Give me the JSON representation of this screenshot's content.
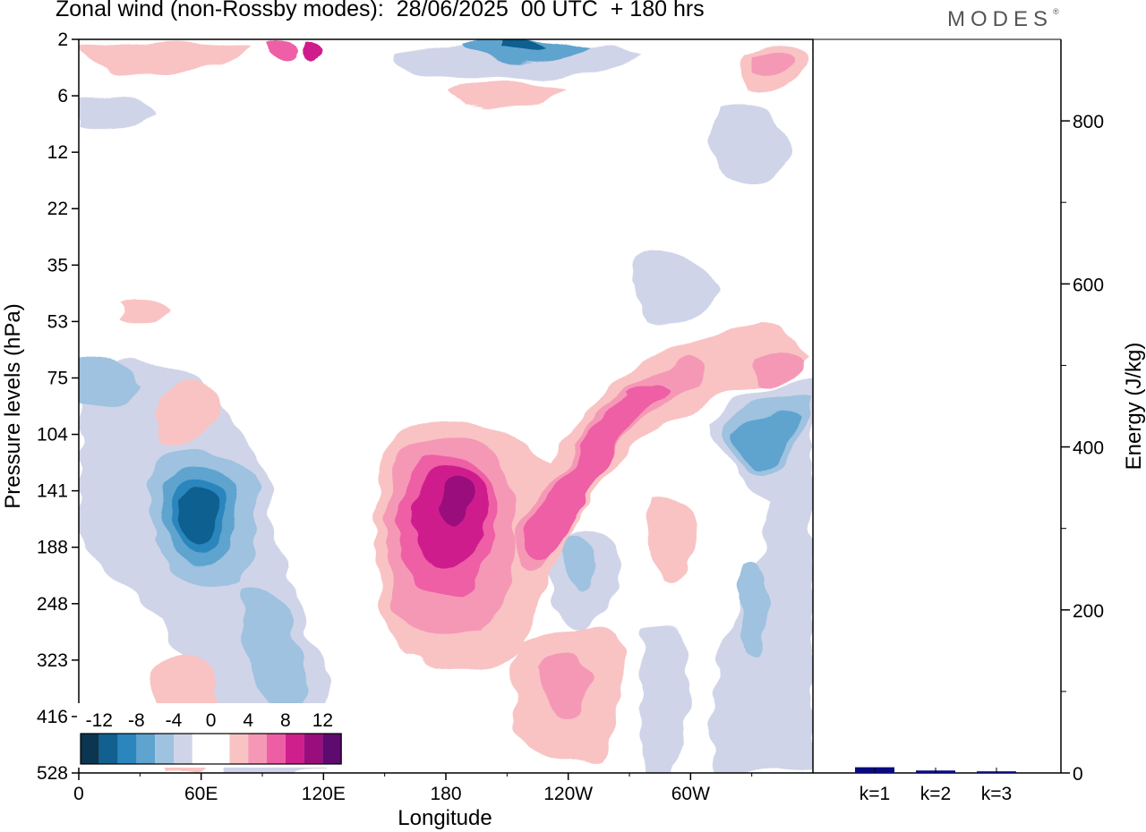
{
  "header": {
    "title": "Zonal wind (non-Rossby modes):  28/06/2025  00 UTC  + 180 hrs",
    "logo": "MODES",
    "logo_mark": "®"
  },
  "chart_data": [
    {
      "type": "heatmap",
      "title": "Zonal wind (non-Rossby modes):  28/06/2025  00 UTC  + 180 hrs",
      "xlabel": "Longitude",
      "ylabel": "Pressure levels (hPa)",
      "x_ticks": [
        "0",
        "60E",
        "120E",
        "180",
        "120W",
        "60W"
      ],
      "x_tick_values": [
        0,
        60,
        120,
        180,
        240,
        300
      ],
      "xlim": [
        0,
        360
      ],
      "y_ticks": [
        "2",
        "6",
        "12",
        "22",
        "35",
        "53",
        "75",
        "104",
        "141",
        "188",
        "248",
        "323",
        "416",
        "528"
      ],
      "y_order": "top-to-bottom",
      "colorbar": {
        "labels": [
          "-12",
          "-8",
          "-4",
          "0",
          "4",
          "8",
          "12"
        ],
        "colors": [
          "#0b3550",
          "#11608f",
          "#2a86bd",
          "#5fa3cf",
          "#9ec2df",
          "#d0d4e8",
          "#ffffff",
          "#ffffff",
          "#f9c3c3",
          "#f598b6",
          "#ee5ea5",
          "#cf1f8d",
          "#9a0d7d",
          "#5e0a6e"
        ]
      },
      "features": [
        {
          "name": "positive core",
          "lon": 184,
          "level": "141",
          "value": 14
        },
        {
          "name": "negative core",
          "lon": 60,
          "level": "141",
          "value": -12
        },
        {
          "name": "positive tilted band",
          "lon_start": 215,
          "lon_end": 290,
          "level_start": "188",
          "level_end": "75",
          "value": 9
        },
        {
          "name": "negative upper core",
          "lon": 210,
          "level": "2",
          "value": -10
        }
      ]
    },
    {
      "type": "bar",
      "ylabel": "Energy (J/kg)",
      "categories": [
        "k=1",
        "k=2",
        "k=3"
      ],
      "values": [
        7,
        3,
        2
      ],
      "ylim": [
        0,
        900
      ],
      "y_ticks": [
        0,
        200,
        400,
        600,
        800
      ],
      "bar_color": "#0a0a80"
    }
  ]
}
